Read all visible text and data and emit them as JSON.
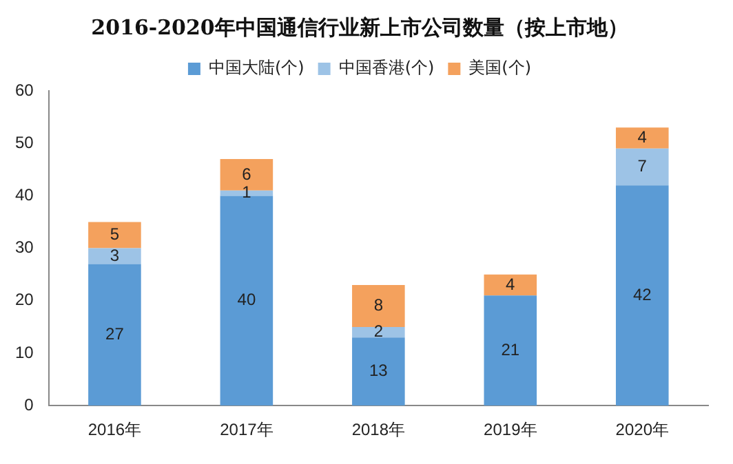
{
  "chart_data": {
    "type": "bar",
    "title": "2016-2020年中国通信行业新上市公司数量（按上市地）",
    "categories": [
      "2016年",
      "2017年",
      "2018年",
      "2019年",
      "2020年"
    ],
    "series": [
      {
        "name": "中国大陆(个)",
        "color": "#5b9bd5",
        "values": [
          27,
          40,
          13,
          21,
          42
        ]
      },
      {
        "name": "中国香港(个)",
        "color": "#9dc3e6",
        "values": [
          3,
          1,
          2,
          null,
          7
        ]
      },
      {
        "name": "美国(个)",
        "color": "#f4a15d",
        "values": [
          5,
          6,
          8,
          4,
          4
        ]
      }
    ],
    "stacked": true,
    "ylim": [
      0,
      60
    ],
    "yticks": [
      0,
      10,
      20,
      30,
      40,
      50,
      60
    ],
    "grid": false,
    "legend": "top",
    "data_labels": true
  }
}
